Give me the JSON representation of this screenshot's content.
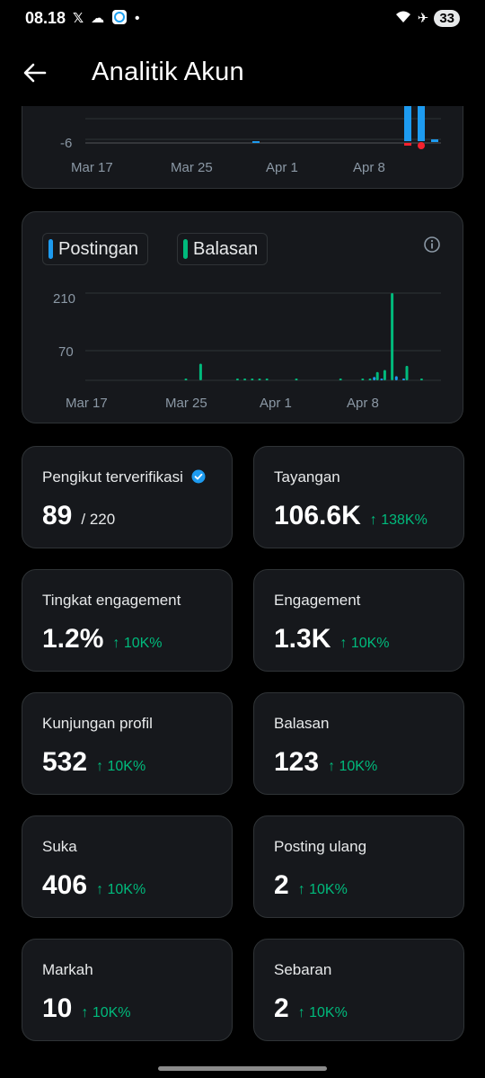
{
  "status_bar": {
    "time": "08.18",
    "battery": "33",
    "icons": [
      "x-logo-icon",
      "cloud-icon",
      "app-notification-icon",
      "dot-icon",
      "wifi-icon",
      "airplane-icon"
    ]
  },
  "header": {
    "title": "Analitik Akun",
    "back_icon": "arrow-left-icon"
  },
  "chart_top": {
    "tick_y": "-6",
    "x_labels": [
      "Mar 17",
      "Mar 25",
      "Apr 1",
      "Apr 8"
    ]
  },
  "chart_data": {
    "type": "bar",
    "x_labels": [
      "Mar 17",
      "Mar 25",
      "Apr 1",
      "Apr 8"
    ],
    "y_ticks": [
      "210",
      "70"
    ],
    "series": [
      {
        "name": "Postingan",
        "color": "#1d9bf0",
        "values": [
          0,
          0,
          0,
          0,
          0,
          0,
          0,
          0,
          0,
          0,
          0,
          0,
          0,
          0,
          0,
          0,
          0,
          0,
          0,
          0,
          0,
          0,
          0,
          0,
          0,
          0,
          0,
          0,
          0,
          0,
          0,
          8,
          2,
          0,
          10,
          2,
          0,
          0
        ]
      },
      {
        "name": "Balasan",
        "color": "#00ba7c",
        "values": [
          0,
          0,
          0,
          0,
          0,
          4,
          0,
          40,
          0,
          0,
          0,
          0,
          2,
          3,
          3,
          3,
          3,
          0,
          0,
          0,
          3,
          0,
          0,
          0,
          0,
          0,
          3,
          0,
          0,
          2,
          3,
          20,
          25,
          210,
          0,
          35,
          0,
          4
        ]
      }
    ]
  },
  "legend": {
    "postingan": "Postingan",
    "balasan": "Balasan",
    "info_icon": "info-icon"
  },
  "stats": [
    {
      "label": "Pengikut terverifikasi",
      "value": "89",
      "total": "/ 220"
    },
    {
      "label": "Tayangan",
      "value": "106.6K",
      "change": "↑ 138K%"
    },
    {
      "label": "Tingkat engagement",
      "value": "1.2%",
      "change": "↑ 10K%"
    },
    {
      "label": "Engagement",
      "value": "1.3K",
      "change": "↑ 10K%"
    },
    {
      "label": "Kunjungan profil",
      "value": "532",
      "change": "↑ 10K%"
    },
    {
      "label": "Balasan",
      "value": "123",
      "change": "↑ 10K%"
    },
    {
      "label": "Suka",
      "value": "406",
      "change": "↑ 10K%"
    },
    {
      "label": "Posting ulang",
      "value": "2",
      "change": "↑ 10K%"
    },
    {
      "label": "Markah",
      "value": "10",
      "change": "↑ 10K%"
    },
    {
      "label": "Sebaran",
      "value": "2",
      "change": "↑ 10K%"
    }
  ],
  "colors": {
    "background": "#000000",
    "card": "#16181c",
    "border": "#2f3336",
    "blue": "#1d9bf0",
    "green": "#00ba7c",
    "red": "#f4212e"
  }
}
